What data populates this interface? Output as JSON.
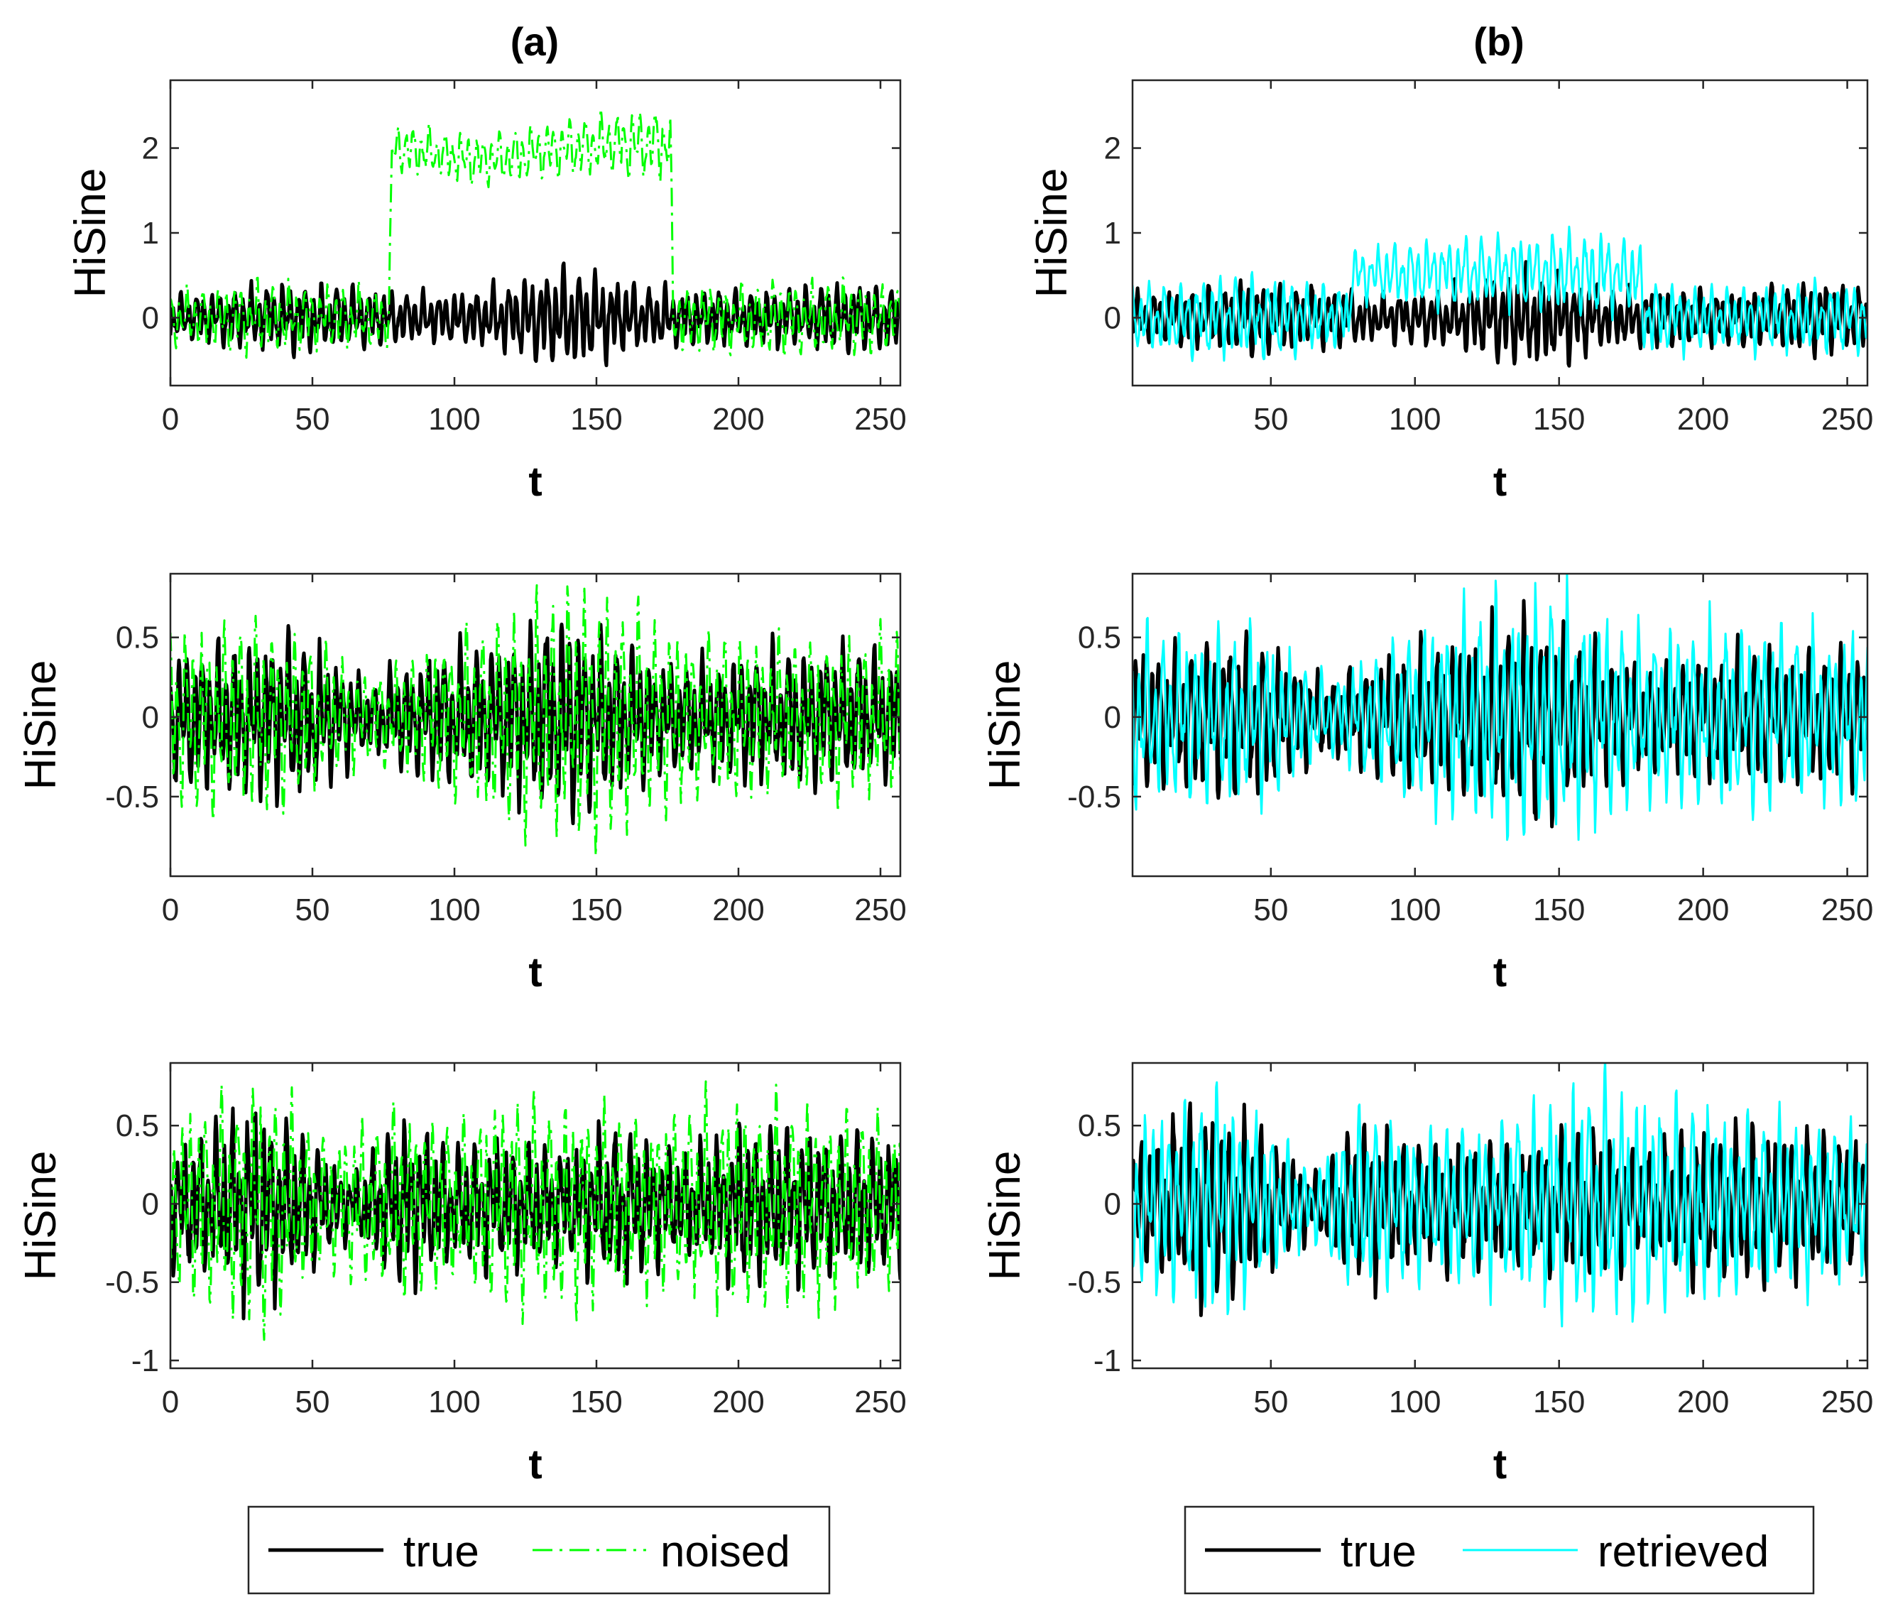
{
  "columns": [
    {
      "title": "(a)",
      "legend": [
        {
          "label": "true",
          "color": "#000000",
          "style": "solid"
        },
        {
          "label": "noised",
          "color": "#00ff00",
          "style": "dash-dot"
        }
      ]
    },
    {
      "title": "(b)",
      "legend": [
        {
          "label": "true",
          "color": "#000000",
          "style": "solid"
        },
        {
          "label": "retrieved",
          "color": "#00ffff",
          "style": "solid"
        }
      ]
    }
  ],
  "chart_data": [
    {
      "type": "line",
      "panel": "a1",
      "xlabel": "t",
      "ylabel": "HiSine",
      "xlim": [
        0,
        257
      ],
      "ylim": [
        -0.8,
        2.8
      ],
      "xticks": [
        0,
        50,
        100,
        150,
        200,
        250
      ],
      "yticks": [
        0,
        1,
        2
      ],
      "series": [
        {
          "name": "true",
          "color": "#000000",
          "dash": "solid",
          "width": 5,
          "seed": 11,
          "envelope": [
            [
              0,
              0.28
            ],
            [
              20,
              0.35
            ],
            [
              45,
              0.45
            ],
            [
              70,
              0.35
            ],
            [
              90,
              0.3
            ],
            [
              110,
              0.35
            ],
            [
              140,
              0.65
            ],
            [
              165,
              0.4
            ],
            [
              180,
              0.35
            ],
            [
              210,
              0.35
            ],
            [
              240,
              0.45
            ],
            [
              257,
              0.4
            ]
          ],
          "offset": [
            [
              0,
              0
            ],
            [
              257,
              0
            ]
          ]
        },
        {
          "name": "noised",
          "color": "#00ff00",
          "dash": "dashdot",
          "width": 3,
          "seed": 21,
          "envelope": [
            [
              0,
              0.35
            ],
            [
              30,
              0.45
            ],
            [
              60,
              0.4
            ],
            [
              77,
              0.35
            ],
            [
              78,
              0.3
            ],
            [
              130,
              0.35
            ],
            [
              176,
              0.45
            ],
            [
              177,
              0.4
            ],
            [
              220,
              0.45
            ],
            [
              257,
              0.4
            ]
          ],
          "offset": [
            [
              0,
              0
            ],
            [
              77,
              0
            ],
            [
              78,
              2.0
            ],
            [
              110,
              1.85
            ],
            [
              150,
              2.05
            ],
            [
              176,
              2.05
            ],
            [
              177,
              0
            ],
            [
              257,
              0
            ]
          ]
        }
      ]
    },
    {
      "type": "line",
      "panel": "b1",
      "xlabel": "t",
      "ylabel": "HiSine",
      "xlim": [
        2,
        257
      ],
      "ylim": [
        -0.8,
        2.8
      ],
      "xticks": [
        50,
        100,
        150,
        200,
        250
      ],
      "yticks": [
        0,
        1,
        2
      ],
      "series": [
        {
          "name": "true",
          "color": "#000000",
          "dash": "solid",
          "width": 5,
          "seed": 11,
          "envelope": [
            [
              0,
              0.28
            ],
            [
              20,
              0.35
            ],
            [
              45,
              0.45
            ],
            [
              70,
              0.35
            ],
            [
              90,
              0.3
            ],
            [
              110,
              0.35
            ],
            [
              140,
              0.65
            ],
            [
              165,
              0.4
            ],
            [
              180,
              0.35
            ],
            [
              210,
              0.35
            ],
            [
              240,
              0.45
            ],
            [
              257,
              0.4
            ]
          ],
          "offset": [
            [
              0,
              0
            ],
            [
              257,
              0
            ]
          ]
        },
        {
          "name": "retrieved",
          "color": "#00ffff",
          "dash": "solid",
          "width": 3,
          "seed": 31,
          "envelope": [
            [
              0,
              0.4
            ],
            [
              40,
              0.55
            ],
            [
              77,
              0.4
            ],
            [
              78,
              0.35
            ],
            [
              130,
              0.45
            ],
            [
              165,
              0.5
            ],
            [
              178,
              0.45
            ],
            [
              200,
              0.4
            ],
            [
              257,
              0.45
            ]
          ],
          "offset": [
            [
              0,
              0
            ],
            [
              77,
              0
            ],
            [
              78,
              0.5
            ],
            [
              130,
              0.55
            ],
            [
              178,
              0.5
            ],
            [
              179,
              0
            ],
            [
              257,
              0
            ]
          ]
        }
      ]
    },
    {
      "type": "line",
      "panel": "a2",
      "xlabel": "t",
      "ylabel": "HiSine",
      "xlim": [
        0,
        257
      ],
      "ylim": [
        -1.0,
        0.9
      ],
      "xticks": [
        0,
        50,
        100,
        150,
        200,
        250
      ],
      "yticks": [
        -0.5,
        0,
        0.5
      ],
      "series": [
        {
          "name": "true",
          "color": "#000000",
          "dash": "solid",
          "width": 5,
          "seed": 12,
          "envelope": [
            [
              0,
              0.45
            ],
            [
              25,
              0.5
            ],
            [
              45,
              0.55
            ],
            [
              70,
              0.25
            ],
            [
              95,
              0.45
            ],
            [
              115,
              0.5
            ],
            [
              140,
              0.7
            ],
            [
              160,
              0.5
            ],
            [
              180,
              0.35
            ],
            [
              210,
              0.45
            ],
            [
              257,
              0.45
            ]
          ],
          "offset": [
            [
              0,
              0
            ],
            [
              257,
              0
            ]
          ]
        },
        {
          "name": "noised",
          "color": "#00ff00",
          "dash": "dashdot",
          "width": 3,
          "seed": 22,
          "envelope": [
            [
              0,
              0.6
            ],
            [
              25,
              0.65
            ],
            [
              45,
              0.55
            ],
            [
              70,
              0.3
            ],
            [
              95,
              0.5
            ],
            [
              130,
              0.8
            ],
            [
              150,
              0.85
            ],
            [
              175,
              0.6
            ],
            [
              210,
              0.5
            ],
            [
              257,
              0.55
            ]
          ],
          "offset": [
            [
              0,
              0
            ],
            [
              257,
              0
            ]
          ]
        }
      ]
    },
    {
      "type": "line",
      "panel": "b2",
      "xlabel": "t",
      "ylabel": "HiSine",
      "xlim": [
        2,
        257
      ],
      "ylim": [
        -1.0,
        0.9
      ],
      "xticks": [
        50,
        100,
        150,
        200,
        250
      ],
      "yticks": [
        -0.5,
        0,
        0.5
      ],
      "series": [
        {
          "name": "true",
          "color": "#000000",
          "dash": "solid",
          "width": 5,
          "seed": 12,
          "envelope": [
            [
              0,
              0.45
            ],
            [
              25,
              0.5
            ],
            [
              45,
              0.55
            ],
            [
              70,
              0.25
            ],
            [
              95,
              0.45
            ],
            [
              115,
              0.5
            ],
            [
              140,
              0.7
            ],
            [
              160,
              0.5
            ],
            [
              180,
              0.35
            ],
            [
              210,
              0.45
            ],
            [
              257,
              0.45
            ]
          ],
          "offset": [
            [
              0,
              0
            ],
            [
              257,
              0
            ]
          ]
        },
        {
          "name": "retrieved",
          "color": "#00ffff",
          "dash": "solid",
          "width": 3,
          "seed": 32,
          "envelope": [
            [
              0,
              0.6
            ],
            [
              25,
              0.55
            ],
            [
              45,
              0.6
            ],
            [
              70,
              0.25
            ],
            [
              100,
              0.6
            ],
            [
              130,
              0.8
            ],
            [
              150,
              0.85
            ],
            [
              175,
              0.6
            ],
            [
              210,
              0.65
            ],
            [
              257,
              0.55
            ]
          ],
          "offset": [
            [
              0,
              0
            ],
            [
              257,
              0
            ]
          ]
        }
      ]
    },
    {
      "type": "line",
      "panel": "a3",
      "xlabel": "t",
      "ylabel": "HiSine",
      "xlim": [
        0,
        257
      ],
      "ylim": [
        -1.05,
        0.9
      ],
      "xticks": [
        0,
        50,
        100,
        150,
        200,
        250
      ],
      "yticks": [
        -1,
        -0.5,
        0,
        0.5
      ],
      "series": [
        {
          "name": "true",
          "color": "#000000",
          "dash": "solid",
          "width": 5,
          "seed": 13,
          "envelope": [
            [
              0,
              0.4
            ],
            [
              30,
              0.7
            ],
            [
              50,
              0.45
            ],
            [
              65,
              0.2
            ],
            [
              80,
              0.6
            ],
            [
              100,
              0.4
            ],
            [
              115,
              0.45
            ],
            [
              140,
              0.4
            ],
            [
              160,
              0.55
            ],
            [
              180,
              0.35
            ],
            [
              200,
              0.55
            ],
            [
              230,
              0.5
            ],
            [
              257,
              0.45
            ]
          ],
          "offset": [
            [
              0,
              0
            ],
            [
              257,
              0
            ]
          ]
        },
        {
          "name": "noised",
          "color": "#00ff00",
          "dash": "dashdot",
          "width": 3,
          "seed": 23,
          "envelope": [
            [
              0,
              0.55
            ],
            [
              20,
              0.8
            ],
            [
              35,
              0.8
            ],
            [
              55,
              0.45
            ],
            [
              80,
              0.65
            ],
            [
              100,
              0.55
            ],
            [
              120,
              0.75
            ],
            [
              160,
              0.6
            ],
            [
              200,
              0.7
            ],
            [
              230,
              0.65
            ],
            [
              257,
              0.55
            ]
          ],
          "offset": [
            [
              0,
              0
            ],
            [
              257,
              0
            ]
          ]
        }
      ]
    },
    {
      "type": "line",
      "panel": "b3",
      "xlabel": "t",
      "ylabel": "HiSine",
      "xlim": [
        2,
        257
      ],
      "ylim": [
        -1.05,
        0.9
      ],
      "xticks": [
        50,
        100,
        150,
        200,
        250
      ],
      "yticks": [
        -1,
        -0.5,
        0,
        0.5
      ],
      "series": [
        {
          "name": "true",
          "color": "#000000",
          "dash": "solid",
          "width": 5,
          "seed": 13,
          "envelope": [
            [
              0,
              0.4
            ],
            [
              30,
              0.7
            ],
            [
              50,
              0.45
            ],
            [
              65,
              0.2
            ],
            [
              80,
              0.6
            ],
            [
              100,
              0.4
            ],
            [
              115,
              0.45
            ],
            [
              140,
              0.4
            ],
            [
              160,
              0.55
            ],
            [
              180,
              0.35
            ],
            [
              200,
              0.55
            ],
            [
              230,
              0.5
            ],
            [
              257,
              0.45
            ]
          ],
          "offset": [
            [
              0,
              0
            ],
            [
              257,
              0
            ]
          ]
        },
        {
          "name": "retrieved",
          "color": "#00ffff",
          "dash": "solid",
          "width": 3,
          "seed": 33,
          "envelope": [
            [
              0,
              0.55
            ],
            [
              30,
              0.8
            ],
            [
              50,
              0.5
            ],
            [
              65,
              0.25
            ],
            [
              80,
              0.7
            ],
            [
              100,
              0.5
            ],
            [
              130,
              0.6
            ],
            [
              165,
              0.85
            ],
            [
              200,
              0.65
            ],
            [
              230,
              0.6
            ],
            [
              257,
              0.5
            ]
          ],
          "offset": [
            [
              0,
              0
            ],
            [
              257,
              0
            ]
          ]
        }
      ]
    }
  ]
}
